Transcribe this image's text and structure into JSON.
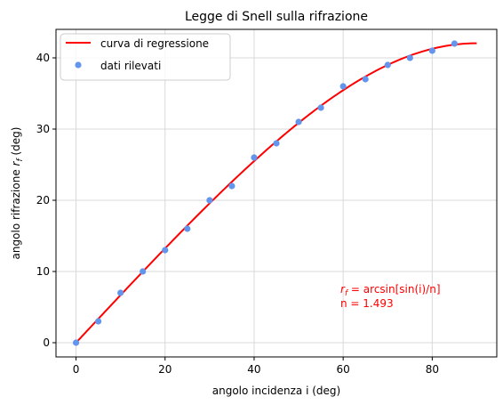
{
  "chart_data": {
    "type": "scatter",
    "title": "Legge di Snell sulla rifrazione",
    "xlabel": "angolo incidenza i (deg)",
    "ylabel_main": "angolo rifrazione ",
    "ylabel_var": "r",
    "ylabel_sub": "f",
    "ylabel_unit": " (deg)",
    "xlim": [
      -4.5,
      94.5
    ],
    "ylim": [
      -2,
      44
    ],
    "xticks": [
      0,
      20,
      40,
      60,
      80
    ],
    "yticks": [
      0,
      10,
      20,
      30,
      40
    ],
    "grid": true,
    "legend_position": "top-left",
    "series": [
      {
        "name": "curva di regressione",
        "kind": "line",
        "color": "#ff0000",
        "formula": "arcsin(sin(i)/n)",
        "n": 1.493,
        "x_range": [
          0,
          90
        ]
      },
      {
        "name": "dati rilevati",
        "kind": "scatter",
        "color": "#6495ed",
        "x": [
          0,
          5,
          10,
          15,
          20,
          25,
          30,
          35,
          40,
          45,
          50,
          55,
          60,
          65,
          70,
          75,
          80,
          85
        ],
        "y": [
          0,
          3,
          7,
          10,
          13,
          16,
          20,
          22,
          26,
          28,
          31,
          33,
          36,
          37,
          39,
          40,
          41,
          42
        ]
      }
    ],
    "annotation": {
      "line1_var": "r",
      "line1_sub": "f",
      "line1_text": " = arcsin[sin(i)/n]",
      "line2": "n =  1.493"
    }
  }
}
